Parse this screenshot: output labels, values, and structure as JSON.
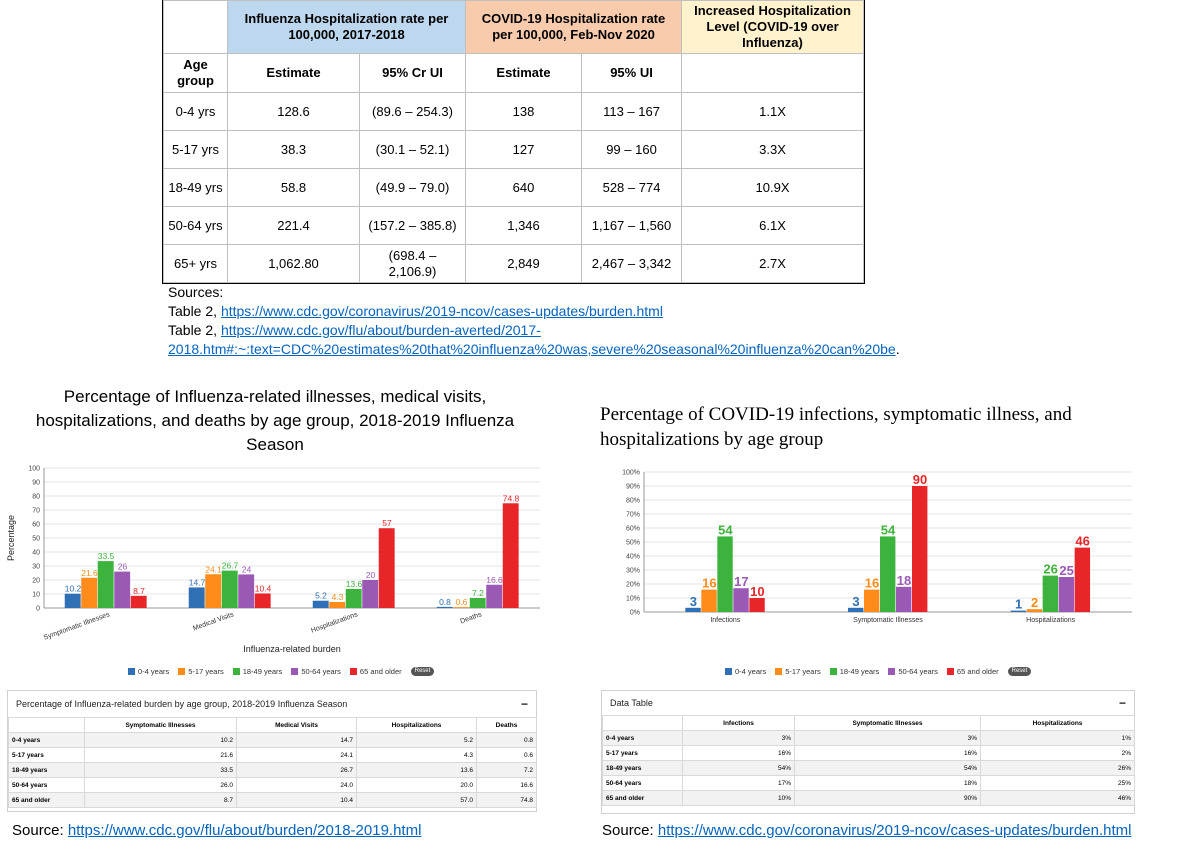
{
  "top_table": {
    "header1": {
      "flu": "Influenza Hospitalization rate per 100,000, 2017-2018",
      "covid": "COVID-19 Hospitalization rate per 100,000, Feb-Nov 2020",
      "increase": "Increased Hospitalization Level (COVID-19 over Influenza)"
    },
    "header2": {
      "age": "Age group",
      "flu_est": "Estimate",
      "flu_ci": "95% Cr UI",
      "covid_est": "Estimate",
      "covid_ci": "95% UI"
    },
    "rows": [
      {
        "age": "0-4 yrs",
        "flu_est": "128.6",
        "flu_ci": "(89.6 – 254.3)",
        "covid_est": "138",
        "covid_ci": "113 – 167",
        "increase": "1.1X"
      },
      {
        "age": "5-17 yrs",
        "flu_est": "38.3",
        "flu_ci": "(30.1 – 52.1)",
        "covid_est": "127",
        "covid_ci": "99 – 160",
        "increase": "3.3X"
      },
      {
        "age": "18-49 yrs",
        "flu_est": "58.8",
        "flu_ci": "(49.9 – 79.0)",
        "covid_est": "640",
        "covid_ci": "528 – 774",
        "increase": "10.9X"
      },
      {
        "age": "50-64 yrs",
        "flu_est": "221.4",
        "flu_ci": "(157.2 – 385.8)",
        "covid_est": "1,346",
        "covid_ci": "1,167 – 1,560",
        "increase": "6.1X"
      },
      {
        "age": "65+ yrs",
        "flu_est": "1,062.80",
        "flu_ci": "(698.4 – 2,106.9)",
        "covid_est": "2,849",
        "covid_ci": "2,467 – 3,342",
        "increase": "2.7X"
      }
    ]
  },
  "sources": {
    "heading": "Sources:",
    "line1_prefix": "Table 2, ",
    "line1_link": "https://www.cdc.gov/coronavirus/2019-ncov/cases-updates/burden.html",
    "line2_prefix": "Table 2, ",
    "line2_link_a": "https://www.cdc.gov/flu/about/burden-averted/2017-",
    "line2_link_b": "2018.htm#:~:text=CDC%20estimates%20that%20influenza%20was,severe%20seasonal%20influenza%20can%20be",
    "line2_suffix": "."
  },
  "colors": {
    "series": [
      "#2f6fb5",
      "#ff8c1a",
      "#3cb33c",
      "#9b59b6",
      "#e8262a"
    ],
    "blue_header": "#bdd7ee",
    "orange_header": "#f8cbad",
    "yellow_header": "#fff2cc",
    "link": "#0563c1"
  },
  "flu_chart": {
    "title": "Percentage of Influenza-related illnesses, medical visits, hospitalizations, and deaths by age group, 2018-2019 Influenza Season",
    "legend_reset": "Reset",
    "chart_data": {
      "type": "bar",
      "categories": [
        "Symptomatic Illnesses",
        "Medical Visits",
        "Hospitalizations",
        "Deaths"
      ],
      "series": [
        {
          "name": "0-4 years",
          "values": [
            10.2,
            14.7,
            5.2,
            0.8
          ]
        },
        {
          "name": "5-17 years",
          "values": [
            21.6,
            24.1,
            4.3,
            0.6
          ]
        },
        {
          "name": "18-49 years",
          "values": [
            33.5,
            26.7,
            13.6,
            7.2
          ]
        },
        {
          "name": "50-64 years",
          "values": [
            26,
            24,
            20,
            16.6
          ]
        },
        {
          "name": "65 and older",
          "values": [
            8.7,
            10.4,
            57,
            74.8
          ]
        }
      ],
      "labels": [
        [
          "10.2",
          "14.7",
          "5.2",
          "0.8"
        ],
        [
          "21.6",
          "24.1",
          "4.3",
          "0.6"
        ],
        [
          "33.5",
          "26.7",
          "13.6",
          "7.2"
        ],
        [
          "26",
          "24",
          "20",
          "16.6"
        ],
        [
          "8.7",
          "10.4",
          "57",
          "74.8"
        ]
      ],
      "ylim": [
        0,
        100
      ],
      "yticks": [
        "0",
        "10",
        "20",
        "30",
        "40",
        "50",
        "60",
        "70",
        "80",
        "90",
        "100"
      ],
      "xlabel": "Influenza-related burden",
      "ylabel": "Percentage"
    }
  },
  "flu_table": {
    "title": "Percentage of Influenza-related burden by age group, 2018-2019 Influenza Season",
    "toggle": "−",
    "columns": [
      "",
      "Symptomatic Illnesses",
      "Medical Visits",
      "Hospitalizations",
      "Deaths"
    ],
    "rows": [
      [
        "0-4 years",
        "10.2",
        "14.7",
        "5.2",
        "0.8"
      ],
      [
        "5-17 years",
        "21.6",
        "24.1",
        "4.3",
        "0.6"
      ],
      [
        "18-49 years",
        "33.5",
        "26.7",
        "13.6",
        "7.2"
      ],
      [
        "50-64 years",
        "26.0",
        "24.0",
        "20.0",
        "16.6"
      ],
      [
        "65 and older",
        "8.7",
        "10.4",
        "57.0",
        "74.8"
      ]
    ]
  },
  "flu_source": {
    "prefix": "Source: ",
    "link": "https://www.cdc.gov/flu/about/burden/2018-2019.html"
  },
  "covid_chart": {
    "title": "Percentage of COVID-19 infections, symptomatic illness, and hospitalizations by age group",
    "legend_reset": "Reset",
    "chart_data": {
      "type": "bar",
      "categories": [
        "Infections",
        "Symptomatic Illnesses",
        "Hospitalizations"
      ],
      "series": [
        {
          "name": "0-4 years",
          "values": [
            3,
            3,
            1
          ]
        },
        {
          "name": "5-17 years",
          "values": [
            16,
            16,
            2
          ]
        },
        {
          "name": "18-49 years",
          "values": [
            54,
            54,
            26
          ]
        },
        {
          "name": "50-64 years",
          "values": [
            17,
            18,
            25
          ]
        },
        {
          "name": "65 and older",
          "values": [
            10,
            90,
            46
          ]
        }
      ],
      "labels": [
        [
          "3",
          "3",
          "1"
        ],
        [
          "16",
          "16",
          "2"
        ],
        [
          "54",
          "54",
          "26"
        ],
        [
          "17",
          "18",
          "25"
        ],
        [
          "10",
          "90",
          "46"
        ]
      ],
      "ylim": [
        0,
        100
      ],
      "yticks": [
        "0%",
        "10%",
        "20%",
        "30%",
        "40%",
        "50%",
        "60%",
        "70%",
        "80%",
        "90%",
        "100%"
      ]
    }
  },
  "covid_table": {
    "title": "Data Table",
    "toggle": "−",
    "columns": [
      "",
      "Infections",
      "Symptomatic Illnesses",
      "Hospitalizations"
    ],
    "rows": [
      [
        "0-4 years",
        "3%",
        "3%",
        "1%"
      ],
      [
        "5-17 years",
        "16%",
        "16%",
        "2%"
      ],
      [
        "18-49 years",
        "54%",
        "54%",
        "26%"
      ],
      [
        "50-64 years",
        "17%",
        "18%",
        "25%"
      ],
      [
        "65 and older",
        "10%",
        "90%",
        "46%"
      ]
    ]
  },
  "covid_source": {
    "prefix": "Source: ",
    "link": "https://www.cdc.gov/coronavirus/2019-ncov/cases-updates/burden.html"
  }
}
